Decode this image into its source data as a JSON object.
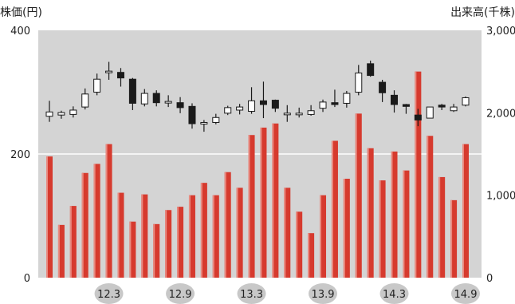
{
  "chart_data": {
    "type": "bar",
    "left_axis_title": "株価(円)",
    "right_axis_title": "出来高(千株)",
    "left_axis": {
      "min": 0,
      "max": 400,
      "ticks": [
        "0",
        "200",
        "400"
      ]
    },
    "right_axis": {
      "min": 0,
      "max": 3000,
      "ticks": [
        "0",
        "1,000",
        "2,000",
        "3,000"
      ]
    },
    "grid": true,
    "colors": {
      "plot_bg": "#d4d4d4",
      "volume_bar": "#d63a2e",
      "up_candle": "#ffffff",
      "down_candle": "#1a1a1a",
      "date_badge": "#c8c8c8"
    },
    "date_labels": [
      {
        "label": "12.3",
        "index": 5
      },
      {
        "label": "12.9",
        "index": 11
      },
      {
        "label": "13.3",
        "index": 17
      },
      {
        "label": "13.9",
        "index": 23
      },
      {
        "label": "14.3",
        "index": 29
      },
      {
        "label": "14.9",
        "index": 35
      }
    ],
    "series": [
      {
        "type": "candlestick",
        "axis": "left",
        "ohlc": [
          [
            261,
            268,
            286,
            252
          ],
          [
            263,
            267,
            270,
            257
          ],
          [
            264,
            271,
            277,
            259
          ],
          [
            276,
            297,
            306,
            272
          ],
          [
            300,
            321,
            330,
            295
          ],
          [
            333,
            334,
            349,
            320
          ],
          [
            332,
            323,
            339,
            309
          ],
          [
            321,
            282,
            323,
            271
          ],
          [
            281,
            298,
            305,
            277
          ],
          [
            298,
            283,
            303,
            277
          ],
          [
            283,
            285,
            295,
            276
          ],
          [
            283,
            275,
            292,
            266
          ],
          [
            277,
            249,
            282,
            241
          ],
          [
            249,
            251,
            255,
            236
          ],
          [
            251,
            259,
            265,
            248
          ],
          [
            266,
            275,
            278,
            263
          ],
          [
            271,
            276,
            281,
            264
          ],
          [
            269,
            286,
            308,
            265
          ],
          [
            286,
            280,
            317,
            258
          ],
          [
            287,
            274,
            288,
            268
          ],
          [
            265,
            266,
            279,
            252
          ],
          [
            266,
            266,
            275,
            259
          ],
          [
            264,
            270,
            279,
            262
          ],
          [
            274,
            284,
            288,
            268
          ],
          [
            283,
            280,
            304,
            276
          ],
          [
            282,
            298,
            302,
            275
          ],
          [
            300,
            331,
            344,
            295
          ],
          [
            346,
            327,
            351,
            325
          ],
          [
            316,
            299,
            320,
            284
          ],
          [
            295,
            280,
            303,
            267
          ],
          [
            280,
            277,
            281,
            265
          ],
          [
            263,
            255,
            273,
            245
          ],
          [
            258,
            276,
            276,
            258
          ],
          [
            279,
            276,
            281,
            271
          ],
          [
            270,
            276,
            281,
            268
          ],
          [
            279,
            291,
            293,
            277
          ]
        ]
      },
      {
        "type": "bar",
        "axis": "right",
        "values": [
          1470,
          640,
          870,
          1270,
          1380,
          1620,
          1030,
          680,
          1010,
          650,
          820,
          860,
          1000,
          1150,
          1000,
          1280,
          1090,
          1730,
          1820,
          1870,
          1090,
          800,
          540,
          1000,
          1660,
          1200,
          1990,
          1570,
          1180,
          1530,
          1300,
          2500,
          1720,
          1220,
          940,
          1620
        ]
      }
    ]
  }
}
